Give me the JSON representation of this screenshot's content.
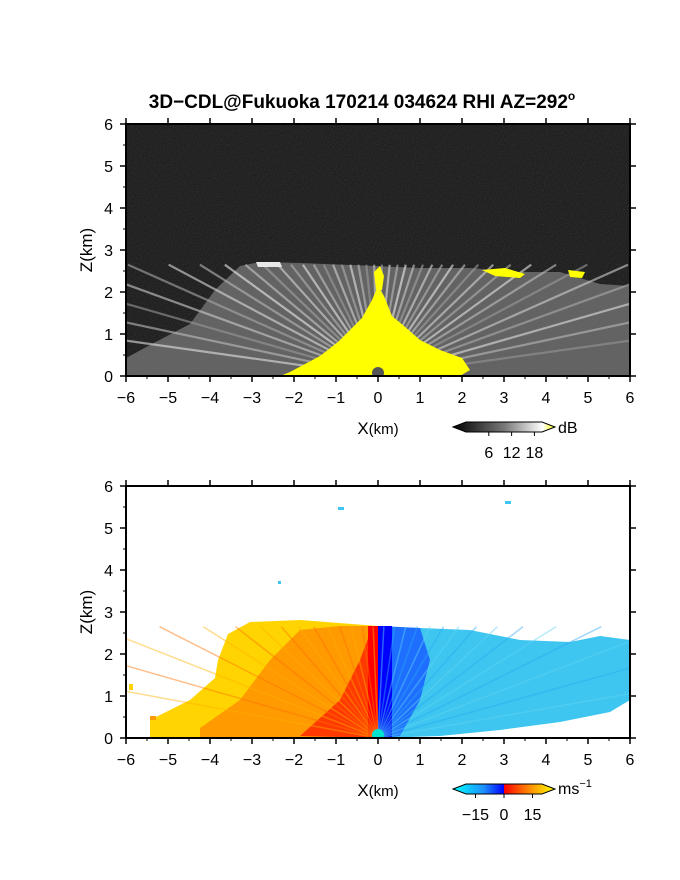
{
  "title_main": "3D−CDL@Fukuoka 170214 034624 RHI AZ=292",
  "title_degree": "o",
  "chart_data": [
    {
      "type": "heatmap",
      "panel": "backscatter-intensity",
      "xlabel_main": "X",
      "xlabel_unit": "(km)",
      "ylabel": "Z(km)",
      "xlim": [
        -6,
        6
      ],
      "ylim": [
        0,
        6
      ],
      "xticks": [
        "-6",
        "-5",
        "-4",
        "-3",
        "-2",
        "-1",
        "0",
        "1",
        "2",
        "3",
        "4",
        "5",
        "6"
      ],
      "yticks": [
        "0",
        "1",
        "2",
        "3",
        "4",
        "5",
        "6"
      ],
      "colorbar": {
        "unit": "dB",
        "ticks": [
          "6",
          "12",
          "18"
        ],
        "tick_values": [
          6,
          12,
          18
        ],
        "range": [
          0,
          20
        ],
        "low_color": "#000000",
        "high_color": "#ffff00"
      },
      "echo_top_km": 2.65,
      "strong_core_color": "#ffff00"
    },
    {
      "type": "heatmap",
      "panel": "doppler-velocity",
      "xlabel_main": "X",
      "xlabel_unit": "(km)",
      "ylabel": "Z(km)",
      "xlim": [
        -6,
        6
      ],
      "ylim": [
        0,
        6
      ],
      "xticks": [
        "-6",
        "-5",
        "-4",
        "-3",
        "-2",
        "-1",
        "0",
        "1",
        "2",
        "3",
        "4",
        "5",
        "6"
      ],
      "yticks": [
        "0",
        "1",
        "2",
        "3",
        "4",
        "5",
        "6"
      ],
      "colorbar": {
        "unit": "ms",
        "unit_exp": "−1",
        "ticks": [
          "−15",
          "0",
          "15"
        ],
        "tick_values": [
          -15,
          0,
          15
        ],
        "range": [
          -20,
          20
        ],
        "negative_colors": [
          "#00ffff",
          "#0000ff"
        ],
        "positive_colors": [
          "#ff0000",
          "#ffff00"
        ]
      },
      "echo_top_km": 2.65
    }
  ]
}
